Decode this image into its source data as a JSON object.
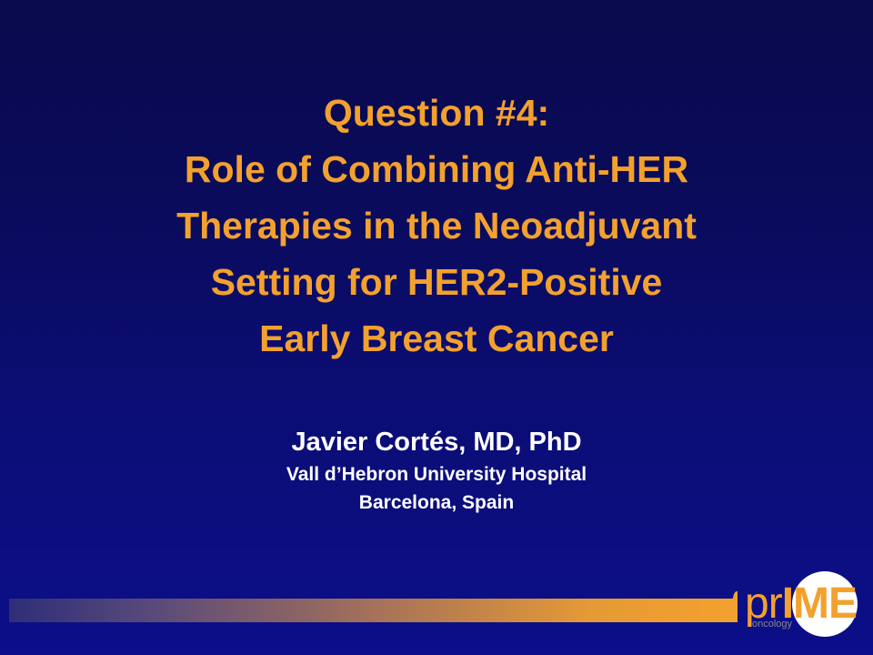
{
  "slide": {
    "title_lines": [
      "Question #4:",
      "Role of Combining Anti-HER",
      "Therapies in the Neoadjuvant",
      "Setting for HER2-Positive",
      "Early Breast Cancer"
    ],
    "author": "Javier Cortés, MD, PhD",
    "affiliation_lines": [
      "Vall d’Hebron University Hospital",
      "Barcelona, Spain"
    ]
  },
  "logo": {
    "text_lower": "pr",
    "text_upper": "IME",
    "subtext": "oncology"
  },
  "colors": {
    "title": "#f3a12e",
    "author_text": "#ffffff",
    "background_top": "#0a0a4d",
    "background_bottom": "#0c0e8a",
    "accent": "#f3a12e"
  }
}
